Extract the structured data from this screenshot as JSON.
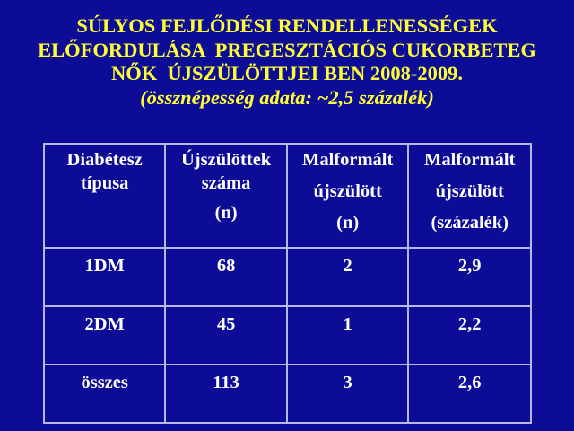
{
  "title": {
    "lines": [
      "SÚLYOS FEJLŐDÉSI RENDELLENESSÉGEK",
      "ELŐFORDULÁSA  PREGESZTÁCIÓS CUKORBETEG",
      "NŐK  ÚJSZÜLÖTTJEI BEN 2008-2009."
    ],
    "subtitle": "(össznépesség adata: ~2,5 százalék)"
  },
  "table": {
    "headers": [
      [
        "Diabétesz",
        "típusa"
      ],
      [
        "Újszülöttek",
        "száma",
        "(n)"
      ],
      [
        "Malformált",
        "újszülött",
        "(n)"
      ],
      [
        "Malformált",
        "újszülött",
        "(százalék)"
      ]
    ],
    "rows": [
      [
        "1DM",
        "68",
        "2",
        "2,9"
      ],
      [
        "2DM",
        "45",
        "1",
        "2,2"
      ],
      [
        "összes",
        "113",
        "3",
        "2,6"
      ]
    ]
  },
  "colors": {
    "background": "#0c0c96",
    "title": "#ffff33",
    "text": "#ffffff"
  }
}
